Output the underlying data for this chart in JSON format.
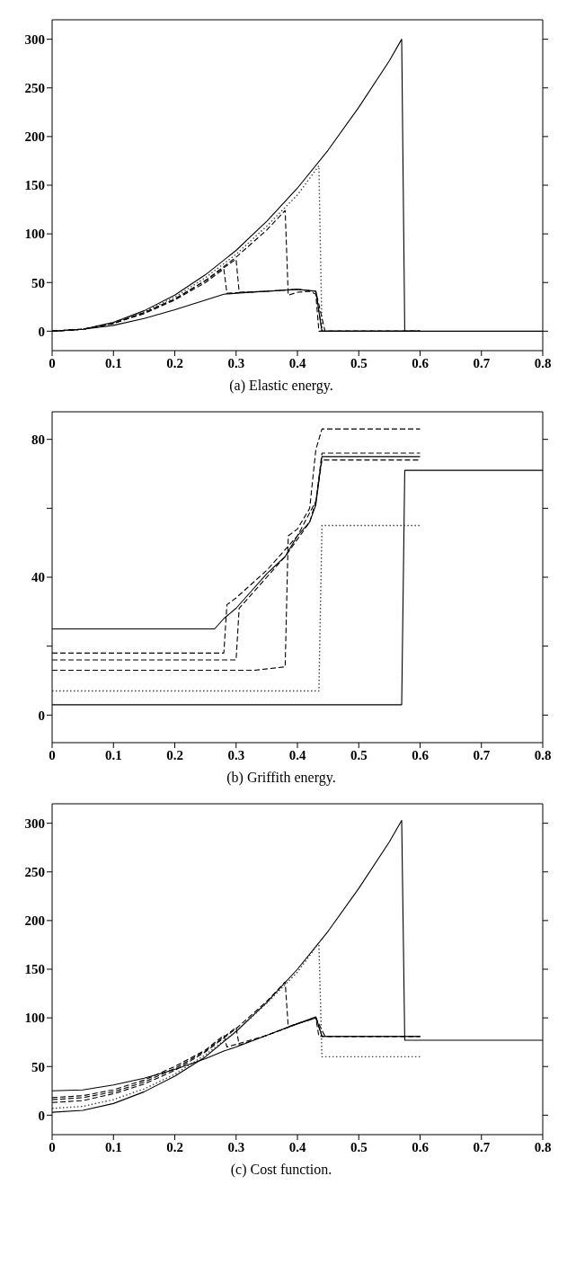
{
  "chart_data": [
    {
      "type": "line",
      "title": "(a) Elastic energy.",
      "xlim": [
        0,
        0.8
      ],
      "xticks": [
        0,
        0.1,
        0.2,
        0.3,
        0.4,
        0.5,
        0.6,
        0.7,
        0.8
      ],
      "ylim": [
        -20,
        320
      ],
      "yticks": [
        0,
        50,
        100,
        150,
        200,
        250,
        300
      ],
      "grid": false,
      "legend": false,
      "marker": "none",
      "series": [
        {
          "color": "#000000",
          "line_style": "solid",
          "x": [
            0,
            0.05,
            0.1,
            0.15,
            0.2,
            0.25,
            0.3,
            0.35,
            0.4,
            0.45,
            0.5,
            0.55,
            0.57,
            0.575,
            0.8
          ],
          "values": [
            0,
            2,
            9,
            21,
            37,
            58,
            83,
            113,
            147,
            186,
            230,
            278,
            300,
            0,
            0
          ]
        },
        {
          "color": "#444444",
          "line_style": "dotted",
          "x": [
            0,
            0.05,
            0.1,
            0.15,
            0.2,
            0.25,
            0.3,
            0.35,
            0.4,
            0.435,
            0.44,
            0.6
          ],
          "values": [
            0,
            2,
            9,
            20,
            35,
            55,
            79,
            108,
            140,
            170,
            0,
            0
          ]
        },
        {
          "color": "#000000",
          "line_style": "dashed",
          "x": [
            0,
            0.05,
            0.1,
            0.15,
            0.2,
            0.25,
            0.3,
            0.35,
            0.38,
            0.385,
            0.4,
            0.42,
            0.43,
            0.435,
            0.6
          ],
          "values": [
            0,
            2,
            8,
            19,
            33,
            52,
            76,
            104,
            124,
            37,
            40,
            41,
            38,
            0,
            0
          ]
        },
        {
          "color": "#000000",
          "line_style": "dashed",
          "x": [
            0,
            0.05,
            0.1,
            0.15,
            0.2,
            0.25,
            0.3,
            0.305,
            0.35,
            0.4,
            0.43,
            0.445,
            0.6
          ],
          "values": [
            0,
            2,
            8,
            19,
            33,
            52,
            74,
            40,
            41,
            43,
            41,
            0,
            0
          ]
        },
        {
          "color": "#000000",
          "line_style": "dashed",
          "x": [
            0,
            0.05,
            0.1,
            0.15,
            0.2,
            0.25,
            0.28,
            0.285,
            0.35,
            0.4,
            0.43,
            0.44,
            0.6
          ],
          "values": [
            0,
            2,
            8,
            18,
            32,
            50,
            64,
            39,
            41,
            43,
            41,
            0,
            0
          ]
        },
        {
          "color": "#000000",
          "line_style": "solid",
          "x": [
            0,
            0.05,
            0.1,
            0.15,
            0.2,
            0.25,
            0.28,
            0.3,
            0.35,
            0.4,
            0.43,
            0.44,
            0.6
          ],
          "values": [
            0,
            2,
            6,
            13,
            22,
            32,
            38,
            39,
            41,
            43,
            41,
            0,
            0
          ]
        }
      ]
    },
    {
      "type": "line",
      "title": "(b) Griffith energy.",
      "xlim": [
        0,
        0.8
      ],
      "xticks": [
        0,
        0.1,
        0.2,
        0.3,
        0.4,
        0.5,
        0.6,
        0.7,
        0.8
      ],
      "ylim": [
        -8,
        88
      ],
      "yticks": [
        0,
        {
          "value": 20,
          "label": null
        },
        40,
        {
          "value": 60,
          "label": null
        },
        80
      ],
      "grid": false,
      "legend": false,
      "marker": "none",
      "series": [
        {
          "color": "#000000",
          "line_style": "solid",
          "x": [
            0,
            0.57,
            0.575,
            0.8
          ],
          "values": [
            3,
            3,
            71,
            71
          ]
        },
        {
          "color": "#444444",
          "line_style": "dotted",
          "x": [
            0,
            0.435,
            0.44,
            0.6
          ],
          "values": [
            7,
            7,
            55,
            55
          ]
        },
        {
          "color": "#000000",
          "line_style": "dashed",
          "x": [
            0,
            0.33,
            0.38,
            0.385,
            0.4,
            0.42,
            0.43,
            0.44,
            0.6
          ],
          "values": [
            13,
            13,
            14,
            52,
            54,
            60,
            77,
            83,
            83
          ]
        },
        {
          "color": "#000000",
          "line_style": "dashed",
          "x": [
            0,
            0.3,
            0.305,
            0.33,
            0.35,
            0.38,
            0.4,
            0.42,
            0.43,
            0.44,
            0.6
          ],
          "values": [
            16,
            16,
            31,
            36,
            40,
            46,
            51,
            56,
            62,
            74,
            74
          ]
        },
        {
          "color": "#000000",
          "line_style": "dashed",
          "x": [
            0,
            0.28,
            0.285,
            0.3,
            0.35,
            0.4,
            0.43,
            0.44,
            0.6
          ],
          "values": [
            18,
            18,
            32,
            34,
            42,
            52,
            62,
            76,
            76
          ]
        },
        {
          "color": "#000000",
          "line_style": "solid",
          "x": [
            0,
            0.265,
            0.28,
            0.3,
            0.33,
            0.35,
            0.38,
            0.4,
            0.42,
            0.43,
            0.44,
            0.6
          ],
          "values": [
            25,
            25,
            28,
            31,
            37,
            41,
            46,
            52,
            56,
            61,
            75,
            75
          ]
        }
      ]
    },
    {
      "type": "line",
      "title": "(c) Cost function.",
      "xlim": [
        0,
        0.8
      ],
      "xticks": [
        0,
        0.1,
        0.2,
        0.3,
        0.4,
        0.5,
        0.6,
        0.7,
        0.8
      ],
      "ylim": [
        -20,
        320
      ],
      "yticks": [
        0,
        50,
        100,
        150,
        200,
        250,
        300
      ],
      "grid": false,
      "legend": false,
      "marker": "none",
      "series": [
        {
          "color": "#000000",
          "line_style": "solid",
          "x": [
            0,
            0.05,
            0.1,
            0.15,
            0.2,
            0.25,
            0.3,
            0.35,
            0.4,
            0.45,
            0.5,
            0.55,
            0.57,
            0.575,
            0.8
          ],
          "values": [
            3,
            5,
            12,
            24,
            40,
            60,
            86,
            116,
            150,
            189,
            233,
            281,
            303,
            77,
            77
          ]
        },
        {
          "color": "#444444",
          "line_style": "dotted",
          "x": [
            0,
            0.05,
            0.1,
            0.15,
            0.2,
            0.25,
            0.3,
            0.35,
            0.4,
            0.435,
            0.44,
            0.6
          ],
          "values": [
            7,
            9,
            16,
            27,
            42,
            62,
            86,
            115,
            147,
            177,
            60,
            60
          ]
        },
        {
          "color": "#000000",
          "line_style": "dashed",
          "x": [
            0,
            0.05,
            0.1,
            0.15,
            0.2,
            0.25,
            0.3,
            0.35,
            0.38,
            0.385,
            0.4,
            0.42,
            0.43,
            0.435,
            0.6
          ],
          "values": [
            13,
            15,
            22,
            32,
            46,
            65,
            89,
            117,
            137,
            91,
            94,
            98,
            100,
            81,
            81
          ]
        },
        {
          "color": "#000000",
          "line_style": "dashed",
          "x": [
            0,
            0.05,
            0.1,
            0.15,
            0.2,
            0.25,
            0.3,
            0.305,
            0.35,
            0.4,
            0.43,
            0.445,
            0.6
          ],
          "values": [
            16,
            18,
            24,
            34,
            48,
            66,
            90,
            72,
            82,
            94,
            100,
            81,
            81
          ]
        },
        {
          "color": "#000000",
          "line_style": "dashed",
          "x": [
            0,
            0.05,
            0.1,
            0.15,
            0.2,
            0.25,
            0.28,
            0.285,
            0.35,
            0.4,
            0.43,
            0.44,
            0.6
          ],
          "values": [
            18,
            20,
            26,
            36,
            50,
            67,
            82,
            70,
            82,
            94,
            100,
            81,
            81
          ]
        },
        {
          "color": "#000000",
          "line_style": "solid",
          "x": [
            0,
            0.05,
            0.1,
            0.15,
            0.2,
            0.25,
            0.28,
            0.3,
            0.35,
            0.4,
            0.43,
            0.44,
            0.6
          ],
          "values": [
            25,
            26,
            31,
            38,
            47,
            58,
            66,
            70,
            82,
            94,
            101,
            81,
            81
          ]
        }
      ]
    }
  ]
}
